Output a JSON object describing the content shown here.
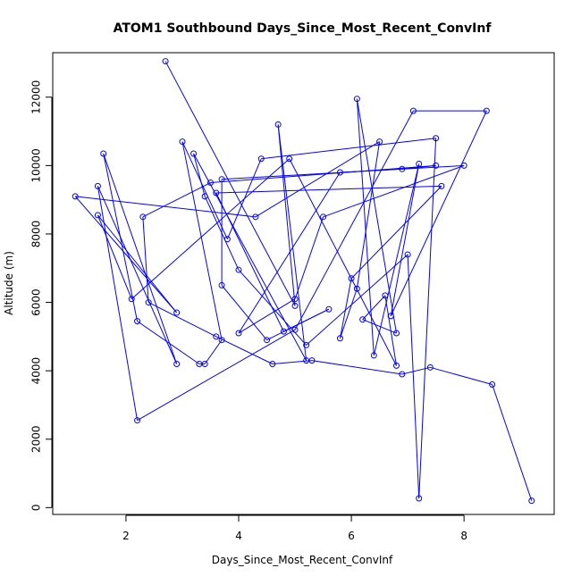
{
  "chart_data": {
    "type": "scatter",
    "title": "ATOM1 Southbound Days_Since_Most_Recent_ConvInf",
    "xlabel": "Days_Since_Most_Recent_ConvInf",
    "ylabel": "Altitude (m)",
    "xlim": [
      0.7,
      9.6
    ],
    "ylim": [
      -200,
      13300
    ],
    "x_ticks": [
      2,
      4,
      6,
      8
    ],
    "y_ticks": [
      0,
      2000,
      4000,
      6000,
      8000,
      10000,
      12000
    ],
    "x_tick_labels": [
      "2",
      "4",
      "6",
      "8"
    ],
    "y_tick_labels": [
      "0",
      "2000",
      "4000",
      "6000",
      "8000",
      "10000",
      "12000"
    ],
    "grid": false,
    "legend": "none",
    "colors": {
      "series": "#0000ff",
      "axis": "#000000",
      "background": "#ffffff"
    },
    "series": [
      {
        "connected": true,
        "marker": "open-circle",
        "points": [
          [
            2.7,
            13050
          ],
          [
            5.0,
            5900
          ],
          [
            4.7,
            11200
          ],
          [
            5.2,
            4300
          ],
          [
            3.2,
            10350
          ],
          [
            3.4,
            9100
          ],
          [
            4.0,
            6950
          ],
          [
            5.2,
            4750
          ],
          [
            7.0,
            7400
          ],
          [
            7.2,
            270
          ],
          [
            7.5,
            10800
          ],
          [
            4.4,
            10200
          ],
          [
            3.8,
            7850
          ],
          [
            3.0,
            10700
          ],
          [
            3.7,
            4900
          ],
          [
            3.4,
            4200
          ],
          [
            3.3,
            4200
          ],
          [
            2.2,
            5450
          ],
          [
            1.6,
            10350
          ],
          [
            2.9,
            4200
          ],
          [
            1.5,
            9400
          ],
          [
            2.2,
            2550
          ],
          [
            5.0,
            5200
          ],
          [
            7.1,
            11600
          ],
          [
            8.4,
            11600
          ],
          [
            6.7,
            5600
          ],
          [
            7.2,
            10050
          ],
          [
            6.4,
            4450
          ],
          [
            6.1,
            11950
          ],
          [
            6.8,
            5100
          ],
          [
            6.2,
            5500
          ],
          [
            6.6,
            6200
          ],
          [
            6.8,
            4150
          ],
          [
            4.9,
            10200
          ],
          [
            2.1,
            6100
          ],
          [
            1.5,
            8550
          ],
          [
            2.9,
            5700
          ],
          [
            1.1,
            9100
          ],
          [
            4.3,
            8500
          ],
          [
            6.5,
            10700
          ],
          [
            6.1,
            6400
          ],
          [
            5.8,
            4950
          ],
          [
            6.0,
            6700
          ],
          [
            7.6,
            9400
          ],
          [
            3.6,
            9200
          ],
          [
            4.8,
            5150
          ],
          [
            5.6,
            5800
          ],
          [
            4.5,
            4900
          ],
          [
            3.7,
            6500
          ],
          [
            3.7,
            9600
          ],
          [
            8.0,
            10000
          ],
          [
            5.5,
            8500
          ],
          [
            5.0,
            6100
          ],
          [
            4.0,
            5100
          ],
          [
            5.8,
            9800
          ],
          [
            6.9,
            9900
          ],
          [
            7.5,
            10000
          ],
          [
            3.5,
            9500
          ],
          [
            2.3,
            8500
          ],
          [
            2.4,
            6000
          ],
          [
            3.6,
            5000
          ],
          [
            4.6,
            4200
          ],
          [
            5.3,
            4300
          ],
          [
            6.9,
            3900
          ],
          [
            7.4,
            4100
          ],
          [
            8.5,
            3600
          ],
          [
            9.2,
            200
          ]
        ]
      }
    ]
  }
}
